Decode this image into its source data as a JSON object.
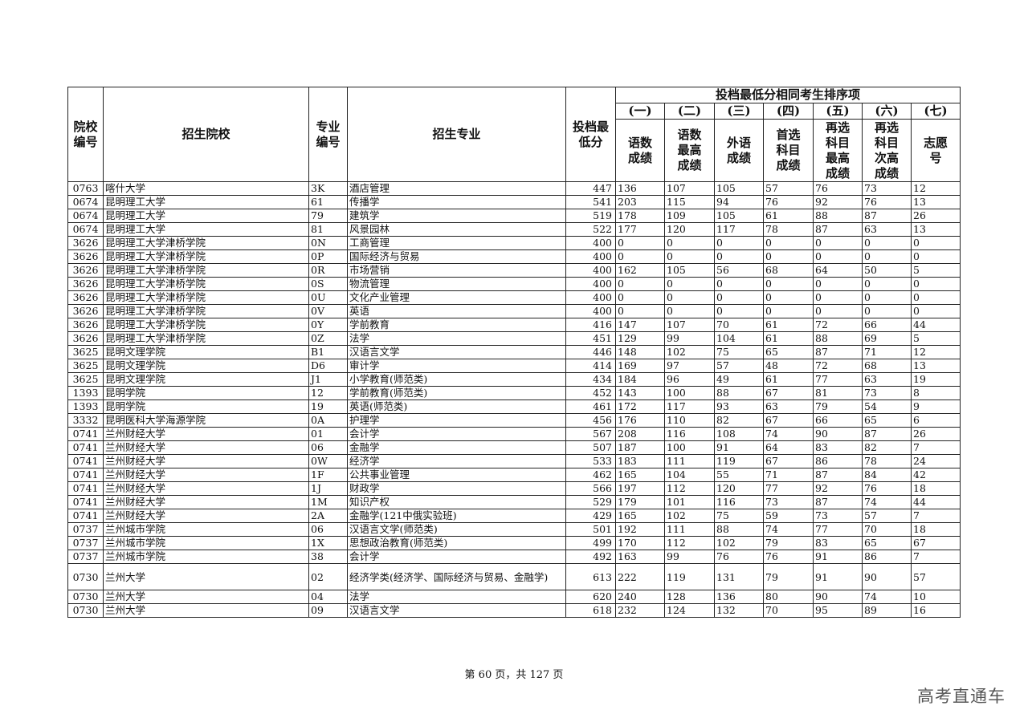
{
  "header": {
    "school_code": "院校编号",
    "school_name": "招生院校",
    "major_code": "专业编号",
    "major_name": "招生专业",
    "min_score": "投档最低分",
    "tiebreak_group": "投档最低分相同考生排序项",
    "tiebreak_nums": [
      "(一)",
      "(二)",
      "(三)",
      "(四)",
      "(五)",
      "(六)",
      "(七)"
    ],
    "tiebreak_labels": [
      "语数成绩",
      "语数最高成绩",
      "外语成绩",
      "首选科目成绩",
      "再选科目最高成绩",
      "再选科目次高成绩",
      "志愿号"
    ]
  },
  "rows": [
    [
      "0763",
      "喀什大学",
      "3K",
      "酒店管理",
      "447",
      "136",
      "107",
      "105",
      "57",
      "76",
      "73",
      "12"
    ],
    [
      "0674",
      "昆明理工大学",
      "61",
      "传播学",
      "541",
      "203",
      "115",
      "94",
      "76",
      "92",
      "76",
      "13"
    ],
    [
      "0674",
      "昆明理工大学",
      "79",
      "建筑学",
      "519",
      "178",
      "109",
      "105",
      "61",
      "88",
      "87",
      "26"
    ],
    [
      "0674",
      "昆明理工大学",
      "81",
      "风景园林",
      "522",
      "177",
      "120",
      "117",
      "78",
      "87",
      "63",
      "13"
    ],
    [
      "3626",
      "昆明理工大学津桥学院",
      "0N",
      "工商管理",
      "400",
      "0",
      "0",
      "0",
      "0",
      "0",
      "0",
      "0"
    ],
    [
      "3626",
      "昆明理工大学津桥学院",
      "0P",
      "国际经济与贸易",
      "400",
      "0",
      "0",
      "0",
      "0",
      "0",
      "0",
      "0"
    ],
    [
      "3626",
      "昆明理工大学津桥学院",
      "0R",
      "市场营销",
      "400",
      "162",
      "105",
      "56",
      "68",
      "64",
      "50",
      "5"
    ],
    [
      "3626",
      "昆明理工大学津桥学院",
      "0S",
      "物流管理",
      "400",
      "0",
      "0",
      "0",
      "0",
      "0",
      "0",
      "0"
    ],
    [
      "3626",
      "昆明理工大学津桥学院",
      "0U",
      "文化产业管理",
      "400",
      "0",
      "0",
      "0",
      "0",
      "0",
      "0",
      "0"
    ],
    [
      "3626",
      "昆明理工大学津桥学院",
      "0V",
      "英语",
      "400",
      "0",
      "0",
      "0",
      "0",
      "0",
      "0",
      "0"
    ],
    [
      "3626",
      "昆明理工大学津桥学院",
      "0Y",
      "学前教育",
      "416",
      "147",
      "107",
      "70",
      "61",
      "72",
      "66",
      "44"
    ],
    [
      "3626",
      "昆明理工大学津桥学院",
      "0Z",
      "法学",
      "451",
      "129",
      "99",
      "104",
      "61",
      "88",
      "69",
      "5"
    ],
    [
      "3625",
      "昆明文理学院",
      "B1",
      "汉语言文学",
      "446",
      "148",
      "102",
      "75",
      "65",
      "87",
      "71",
      "12"
    ],
    [
      "3625",
      "昆明文理学院",
      "D6",
      "审计学",
      "414",
      "169",
      "97",
      "57",
      "48",
      "72",
      "68",
      "13"
    ],
    [
      "3625",
      "昆明文理学院",
      "J1",
      "小学教育(师范类)",
      "434",
      "184",
      "96",
      "49",
      "61",
      "77",
      "63",
      "19"
    ],
    [
      "1393",
      "昆明学院",
      "12",
      "学前教育(师范类)",
      "452",
      "143",
      "100",
      "88",
      "67",
      "81",
      "73",
      "8"
    ],
    [
      "1393",
      "昆明学院",
      "19",
      "英语(师范类)",
      "461",
      "172",
      "117",
      "93",
      "63",
      "79",
      "54",
      "9"
    ],
    [
      "3332",
      "昆明医科大学海源学院",
      "0A",
      "护理学",
      "456",
      "176",
      "110",
      "82",
      "67",
      "66",
      "65",
      "6"
    ],
    [
      "0741",
      "兰州财经大学",
      "01",
      "会计学",
      "567",
      "208",
      "116",
      "108",
      "74",
      "90",
      "87",
      "26"
    ],
    [
      "0741",
      "兰州财经大学",
      "06",
      "金融学",
      "507",
      "187",
      "100",
      "91",
      "64",
      "83",
      "82",
      "7"
    ],
    [
      "0741",
      "兰州财经大学",
      "0W",
      "经济学",
      "533",
      "183",
      "111",
      "119",
      "67",
      "86",
      "78",
      "24"
    ],
    [
      "0741",
      "兰州财经大学",
      "1F",
      "公共事业管理",
      "462",
      "165",
      "104",
      "55",
      "71",
      "87",
      "84",
      "42"
    ],
    [
      "0741",
      "兰州财经大学",
      "1J",
      "财政学",
      "566",
      "197",
      "112",
      "120",
      "77",
      "92",
      "76",
      "18"
    ],
    [
      "0741",
      "兰州财经大学",
      "1M",
      "知识产权",
      "529",
      "179",
      "101",
      "116",
      "73",
      "87",
      "74",
      "44"
    ],
    [
      "0741",
      "兰州财经大学",
      "2A",
      "金融学(121中俄实验班)",
      "429",
      "165",
      "102",
      "75",
      "59",
      "73",
      "57",
      "7"
    ],
    [
      "0737",
      "兰州城市学院",
      "06",
      "汉语言文学(师范类)",
      "501",
      "192",
      "111",
      "88",
      "74",
      "77",
      "70",
      "18"
    ],
    [
      "0737",
      "兰州城市学院",
      "1X",
      "思想政治教育(师范类)",
      "499",
      "170",
      "112",
      "102",
      "79",
      "83",
      "65",
      "67"
    ],
    [
      "0737",
      "兰州城市学院",
      "38",
      "会计学",
      "492",
      "163",
      "99",
      "76",
      "76",
      "91",
      "86",
      "7"
    ],
    [
      "0730",
      "兰州大学",
      "02",
      "经济学类(经济学、国际经济与贸易、金融学)",
      "613",
      "222",
      "119",
      "131",
      "79",
      "91",
      "90",
      "57"
    ],
    [
      "0730",
      "兰州大学",
      "04",
      "法学",
      "620",
      "240",
      "128",
      "136",
      "80",
      "90",
      "74",
      "10"
    ],
    [
      "0730",
      "兰州大学",
      "09",
      "汉语言文学",
      "618",
      "232",
      "124",
      "132",
      "70",
      "95",
      "89",
      "16"
    ]
  ],
  "footer": "第 60 页，共 127 页",
  "watermark": "高考直通车"
}
